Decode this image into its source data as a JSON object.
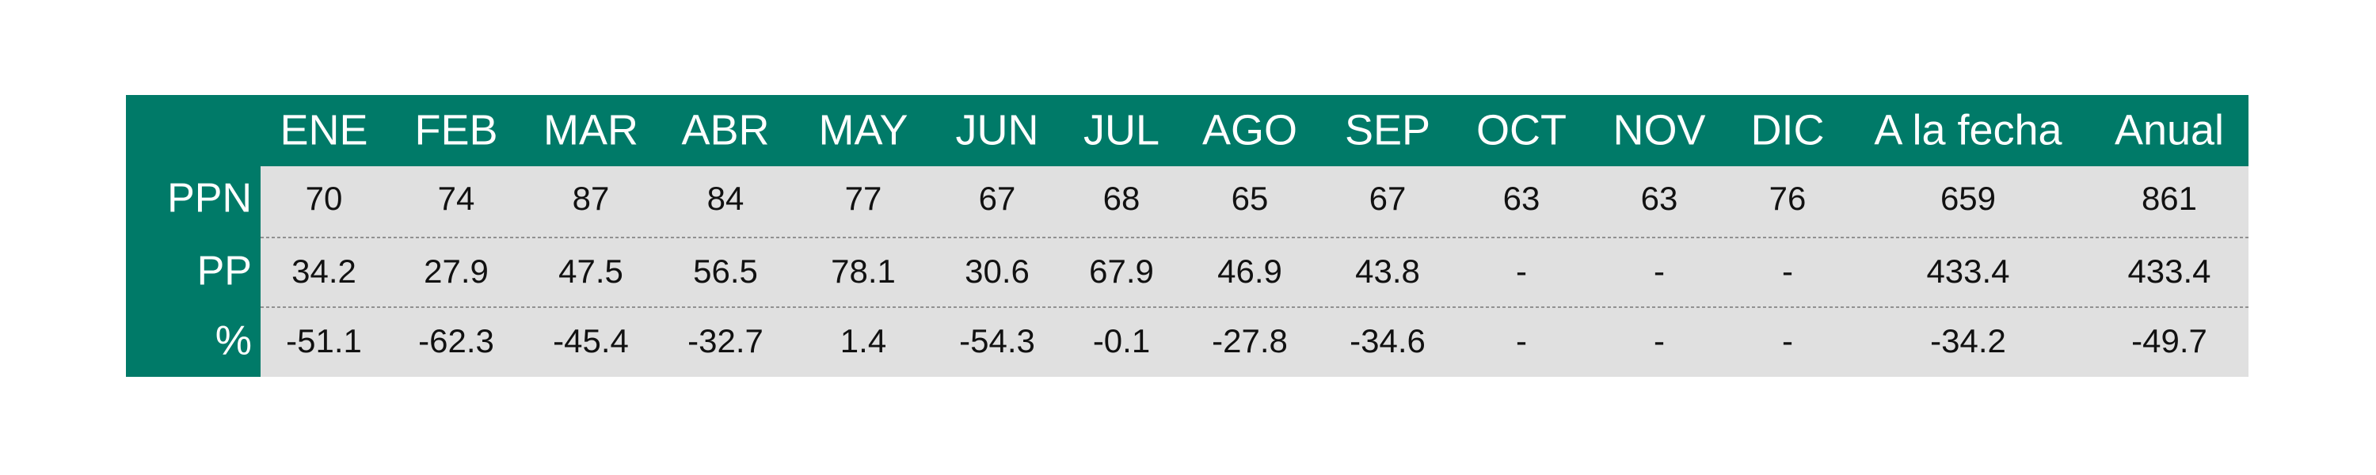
{
  "table": {
    "columns": [
      "ENE",
      "FEB",
      "MAR",
      "ABR",
      "MAY",
      "JUN",
      "JUL",
      "AGO",
      "SEP",
      "OCT",
      "NOV",
      "DIC",
      "A la fecha",
      "Anual"
    ],
    "rows": [
      {
        "label": "PPN",
        "cells": [
          "70",
          "74",
          "87",
          "84",
          "77",
          "67",
          "68",
          "65",
          "67",
          "63",
          "63",
          "76",
          "659",
          "861"
        ]
      },
      {
        "label": "PP",
        "cells": [
          "34.2",
          "27.9",
          "47.5",
          "56.5",
          "78.1",
          "30.6",
          "67.9",
          "46.9",
          "43.8",
          "-",
          "-",
          "-",
          "433.4",
          "433.4"
        ]
      },
      {
        "label": "%",
        "cells": [
          "-51.1",
          "-62.3",
          "-45.4",
          "-32.7",
          "1.4",
          "-54.3",
          "-0.1",
          "-27.8",
          "-34.6",
          "-",
          "-",
          "-",
          "-34.2",
          "-49.7"
        ]
      }
    ]
  }
}
